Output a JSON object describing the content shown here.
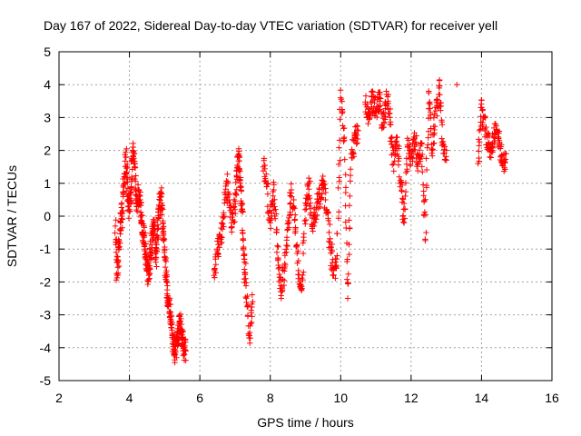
{
  "chart_data": {
    "type": "scatter",
    "title": "Day 167 of 2022, Sidereal Day-to-day VTEC variation (SDTVAR) for receiver yell",
    "xlabel": "GPS time / hours",
    "ylabel": "SDTVAR / TECUs",
    "xlim": [
      2,
      16
    ],
    "ylim": [
      -5,
      5
    ],
    "xticks": [
      2,
      4,
      6,
      8,
      10,
      12,
      14,
      16
    ],
    "yticks": [
      -5,
      -4,
      -3,
      -2,
      -1,
      0,
      1,
      2,
      3,
      4,
      5
    ],
    "xtick_labels": [
      "2",
      "4",
      "6",
      "8",
      "10",
      "12",
      "14",
      "16"
    ],
    "ytick_labels": [
      "-5",
      "-4",
      "-3",
      "-2",
      "-1",
      "0",
      "1",
      "2",
      "3",
      "4",
      "5"
    ],
    "grid": true,
    "marker": "+",
    "color": "#ff0000",
    "series": [
      {
        "name": "SDTVAR",
        "segments": [
          {
            "x": [
              3.6,
              3.65,
              3.7,
              3.75,
              3.8,
              3.85,
              3.9,
              3.95,
              4.0,
              4.05,
              4.1,
              4.15,
              4.2,
              4.25,
              4.3,
              4.35,
              4.4,
              4.45,
              4.5,
              4.55,
              4.6,
              4.65,
              4.7,
              4.75,
              4.8,
              4.85,
              4.9,
              4.95,
              5.0,
              5.05,
              5.1,
              5.15,
              5.2,
              5.25,
              5.3,
              5.35,
              5.4,
              5.45,
              5.5,
              5.55,
              5.6
            ],
            "y": [
              -0.3,
              -1.8,
              -1.0,
              -0.2,
              0.1,
              1.2,
              1.8,
              0.6,
              0.2,
              0.9,
              2.1,
              1.5,
              0.3,
              0.8,
              0.4,
              -0.2,
              -0.6,
              -1.0,
              -1.6,
              -1.8,
              -1.2,
              -0.5,
              -0.2,
              -1.4,
              -0.4,
              0.3,
              0.6,
              -0.2,
              -1.0,
              -2.0,
              -2.6,
              -2.9,
              -3.3,
              -3.9,
              -4.2,
              -3.8,
              -3.5,
              -3.2,
              -3.7,
              -4.0,
              -4.1
            ]
          },
          {
            "x": [
              6.4,
              6.5,
              6.6,
              6.7,
              6.8,
              6.9,
              7.0,
              7.05,
              7.1,
              7.15,
              7.2,
              7.25,
              7.3,
              7.4,
              7.5
            ],
            "y": [
              -1.8,
              -1.0,
              -0.7,
              0.4,
              1.0,
              -0.2,
              0.2,
              1.4,
              1.8,
              1.0,
              0.2,
              -1.2,
              -1.9,
              -3.7,
              -2.6
            ]
          },
          {
            "x": [
              7.8,
              7.9,
              8.0,
              8.1,
              8.2,
              8.3,
              8.4,
              8.5,
              8.6,
              8.7,
              8.8,
              8.9,
              9.0,
              9.1,
              9.2,
              9.3,
              9.4,
              9.5,
              9.6,
              9.7,
              9.8,
              9.9,
              10.0,
              10.1,
              10.2,
              10.3,
              10.4,
              10.5
            ],
            "y": [
              1.5,
              0.9,
              -0.2,
              0.8,
              -0.9,
              -2.3,
              -1.6,
              -0.4,
              0.8,
              -0.1,
              -1.9,
              -2.2,
              0.4,
              1.0,
              -0.3,
              0.2,
              0.6,
              1.0,
              0.2,
              -0.8,
              -1.8,
              -1.2,
              3.6,
              2.4,
              -2.5,
              1.9,
              2.3,
              2.6
            ]
          },
          {
            "x": [
              10.7,
              10.8,
              10.9,
              11.0,
              11.1,
              11.2,
              11.3,
              11.4,
              11.5,
              11.6,
              11.7,
              11.8,
              11.9,
              12.0,
              12.1,
              12.2,
              12.3,
              12.4,
              12.5,
              12.6,
              12.7,
              12.8,
              12.9,
              13.0,
              13.3
            ],
            "y": [
              3.4,
              3.0,
              3.5,
              3.2,
              3.6,
              2.7,
              3.7,
              3.0,
              1.6,
              2.4,
              1.0,
              -0.2,
              2.1,
              1.8,
              2.4,
              1.6,
              2.2,
              -0.7,
              3.8,
              2.0,
              3.2,
              3.9,
              2.2,
              2.0,
              4.0
            ]
          },
          {
            "x": [
              13.9,
              14.0,
              14.1,
              14.2,
              14.3,
              14.4,
              14.5,
              14.6,
              14.7
            ],
            "y": [
              1.6,
              3.3,
              2.6,
              2.2,
              2.0,
              2.8,
              2.3,
              1.6,
              1.9
            ]
          }
        ]
      }
    ]
  }
}
